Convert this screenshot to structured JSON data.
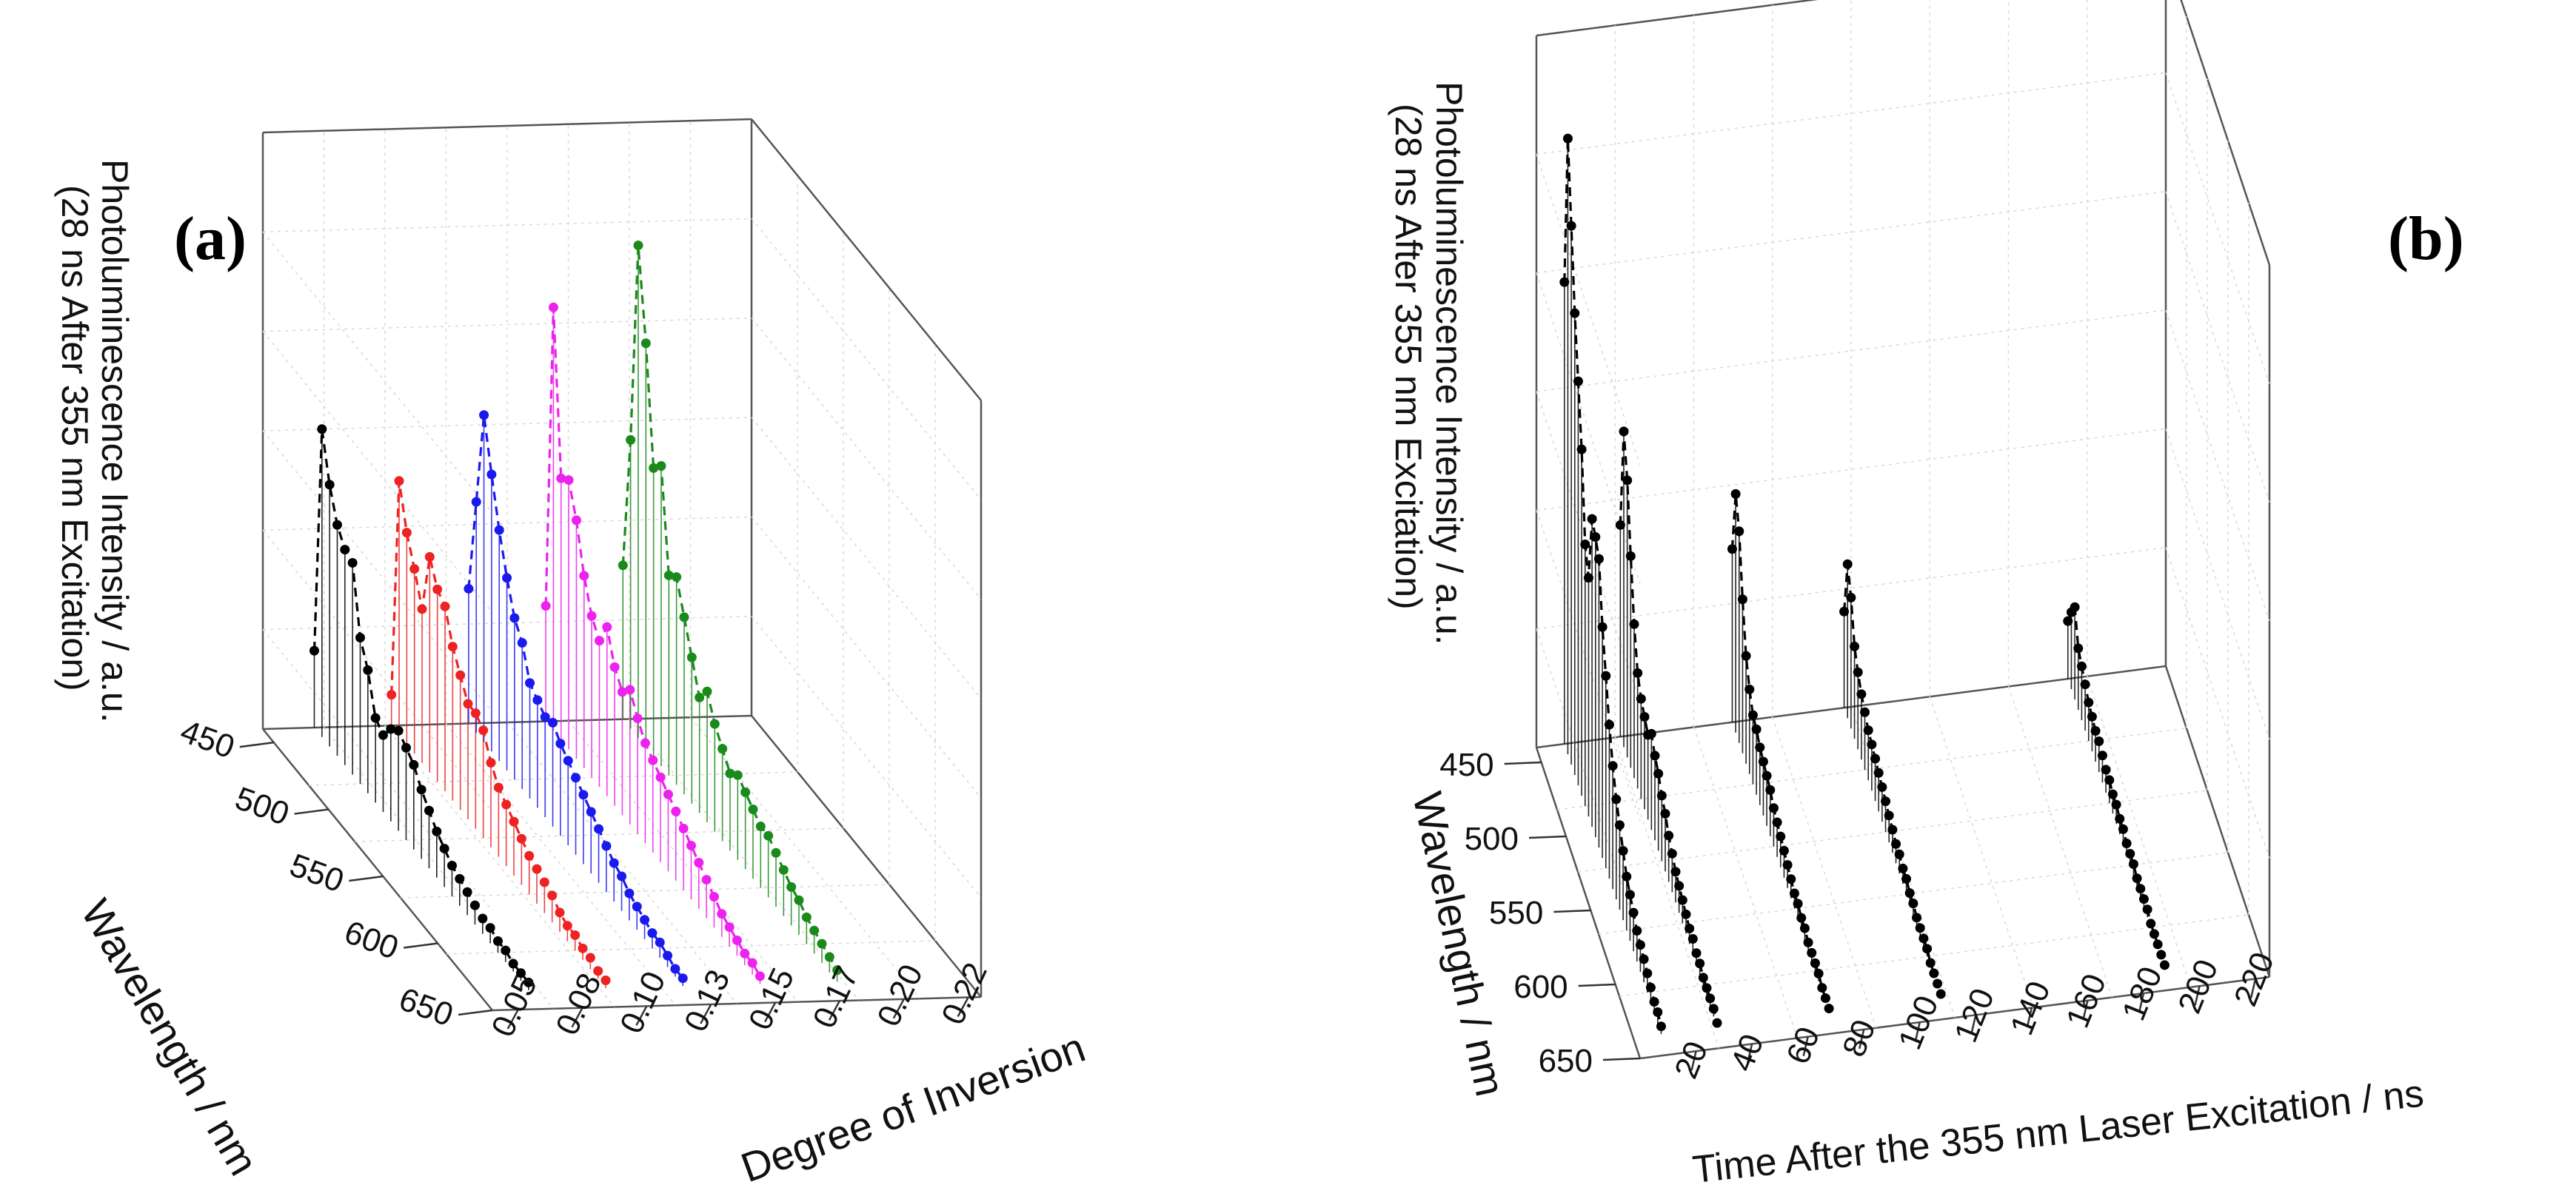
{
  "chart_data": [
    {
      "type": "3d-stem-line",
      "panel_label": "(a)",
      "zlabel_line1": "Photoluminescence Intensity / a.u.",
      "zlabel_line2": "(28 ns After 355 nm Excitation)",
      "ylabel": "Wavelength / nm",
      "xlabel": "Degree of Inversion",
      "y_ticks": [
        "450",
        "500",
        "550",
        "600",
        "650"
      ],
      "x_ticks": [
        "0.05",
        "0.08",
        "0.10",
        "0.13",
        "0.15",
        "0.17",
        "0.20",
        "0.22"
      ],
      "wavelength_range": [
        450,
        650
      ],
      "wavelengths": [
        440,
        447,
        454,
        461,
        468,
        475,
        482,
        489,
        496,
        503,
        510,
        517,
        524,
        531,
        538,
        545,
        552,
        559,
        566,
        573,
        580,
        587,
        594,
        601,
        608,
        615,
        622,
        629,
        636
      ],
      "series": [
        {
          "name": "0.06",
          "color": "#000000",
          "x": 0.06,
          "values": [
            0.2,
            0.8,
            0.68,
            0.6,
            0.56,
            0.55,
            0.38,
            0.32,
            0.22,
            0.2,
            0.24,
            0.26,
            0.24,
            0.22,
            0.18,
            0.15,
            0.12,
            0.1,
            0.08,
            0.07,
            0.06,
            0.05,
            0.04,
            0.04,
            0.03,
            0.03,
            0.02,
            0.02,
            0.02
          ]
        },
        {
          "name": "0.09",
          "color": "#ee2222",
          "x": 0.09,
          "values": [
            0.08,
            0.66,
            0.55,
            0.48,
            0.4,
            0.56,
            0.5,
            0.48,
            0.4,
            0.35,
            0.3,
            0.3,
            0.28,
            0.22,
            0.18,
            0.16,
            0.14,
            0.12,
            0.1,
            0.09,
            0.08,
            0.07,
            0.05,
            0.04,
            0.04,
            0.03,
            0.03,
            0.02,
            0.02
          ]
        },
        {
          "name": "0.12",
          "color": "#1a1aee",
          "x": 0.12,
          "values": [
            0.35,
            0.6,
            0.85,
            0.72,
            0.6,
            0.5,
            0.42,
            0.38,
            0.3,
            0.28,
            0.26,
            0.27,
            0.24,
            0.22,
            0.2,
            0.18,
            0.16,
            0.14,
            0.12,
            0.1,
            0.09,
            0.07,
            0.06,
            0.05,
            0.04,
            0.04,
            0.03,
            0.02,
            0.02
          ]
        },
        {
          "name": "0.15",
          "color": "#ee22ee",
          "x": 0.15,
          "values": [
            0.3,
            1.1,
            0.68,
            0.7,
            0.62,
            0.5,
            0.42,
            0.38,
            0.44,
            0.36,
            0.32,
            0.35,
            0.3,
            0.26,
            0.24,
            0.22,
            0.2,
            0.18,
            0.16,
            0.14,
            0.12,
            0.1,
            0.08,
            0.06,
            0.05,
            0.04,
            0.03,
            0.03,
            0.02
          ]
        },
        {
          "name": "0.18",
          "color": "#1a8a1a",
          "x": 0.18,
          "values": [
            0.4,
            0.75,
            1.28,
            1.05,
            0.75,
            0.78,
            0.52,
            0.54,
            0.46,
            0.38,
            0.3,
            0.34,
            0.28,
            0.24,
            0.2,
            0.22,
            0.2,
            0.18,
            0.16,
            0.16,
            0.14,
            0.12,
            0.1,
            0.09,
            0.07,
            0.06,
            0.05,
            0.04,
            0.03
          ]
        }
      ]
    },
    {
      "type": "3d-stem-line",
      "panel_label": "(b)",
      "zlabel_line1": "Photoluminescence Intensity / a.u.",
      "zlabel_line2": "(28 ns After 355 nm Excitation)",
      "ylabel": "Wavelength / nm",
      "xlabel": "Time After the 355 nm Laser Excitation / ns",
      "y_ticks": [
        "450",
        "500",
        "550",
        "600",
        "650"
      ],
      "x_ticks": [
        "20",
        "40",
        "60",
        "80",
        "100",
        "120",
        "140",
        "160",
        "180",
        "200",
        "220"
      ],
      "wavelength_range": [
        450,
        650
      ],
      "wavelengths": [
        440,
        447,
        454,
        461,
        468,
        475,
        482,
        489,
        496,
        503,
        510,
        517,
        524,
        531,
        538,
        545,
        552,
        559,
        566,
        573,
        580,
        587,
        594,
        601,
        608,
        615,
        622,
        629,
        636
      ],
      "series": [
        {
          "name": "10 ns",
          "color": "#000000",
          "x": 10,
          "values": [
            1.2,
            1.6,
            1.4,
            1.2,
            1.05,
            0.9,
            0.68,
            0.62,
            0.8,
            0.78,
            0.75,
            0.6,
            0.5,
            0.4,
            0.32,
            0.26,
            0.22,
            0.18,
            0.14,
            0.12,
            0.1,
            0.08,
            0.07,
            0.06,
            0.05,
            0.04,
            0.03,
            0.03,
            0.02
          ]
        },
        {
          "name": "30 ns",
          "color": "#000000",
          "x": 30,
          "values": [
            0.55,
            0.82,
            0.72,
            0.55,
            0.4,
            0.3,
            0.26,
            0.24,
            0.22,
            0.25,
            0.22,
            0.2,
            0.17,
            0.15,
            0.12,
            0.1,
            0.08,
            0.07,
            0.06,
            0.05,
            0.04,
            0.04,
            0.03,
            0.03,
            0.02,
            0.02,
            0.02,
            0.02,
            0.01
          ]
        },
        {
          "name": "70 ns",
          "color": "#000000",
          "x": 70,
          "values": [
            0.45,
            0.62,
            0.55,
            0.4,
            0.28,
            0.22,
            0.18,
            0.17,
            0.15,
            0.14,
            0.13,
            0.12,
            0.1,
            0.09,
            0.08,
            0.07,
            0.06,
            0.05,
            0.04,
            0.04,
            0.03,
            0.03,
            0.02,
            0.02,
            0.02,
            0.02,
            0.01,
            0.01,
            0.01
          ]
        },
        {
          "name": "110 ns",
          "color": "#000000",
          "x": 110,
          "values": [
            0.25,
            0.4,
            0.34,
            0.24,
            0.2,
            0.17,
            0.15,
            0.13,
            0.12,
            0.11,
            0.1,
            0.09,
            0.08,
            0.07,
            0.06,
            0.05,
            0.05,
            0.04,
            0.04,
            0.03,
            0.03,
            0.02,
            0.02,
            0.02,
            0.02,
            0.01,
            0.01,
            0.01,
            0.01
          ]
        },
        {
          "name": "190 ns",
          "color": "#000000",
          "x": 190,
          "values": [
            0.15,
            0.2,
            0.24,
            0.16,
            0.14,
            0.12,
            0.1,
            0.09,
            0.08,
            0.08,
            0.07,
            0.06,
            0.06,
            0.05,
            0.05,
            0.04,
            0.04,
            0.03,
            0.03,
            0.03,
            0.02,
            0.02,
            0.02,
            0.02,
            0.01,
            0.01,
            0.01,
            0.01,
            0.01
          ]
        }
      ]
    }
  ]
}
